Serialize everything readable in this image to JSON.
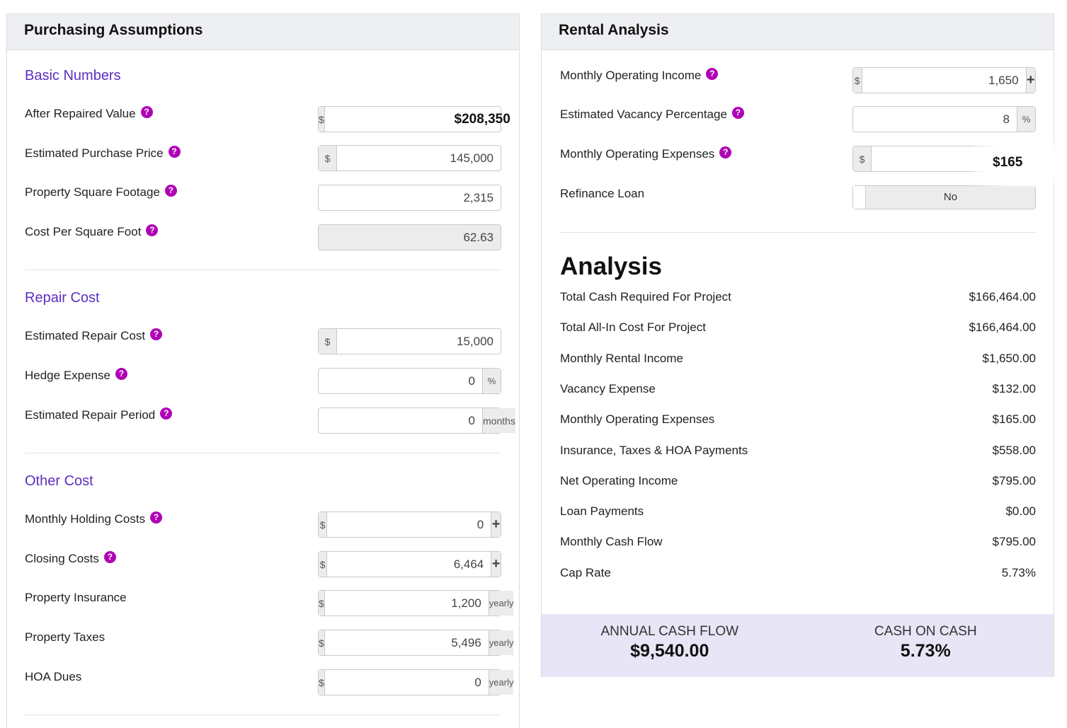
{
  "purchasing": {
    "header": "Purchasing Assumptions",
    "basic": {
      "title": "Basic Numbers",
      "after_repaired_value": {
        "label": "After Repaired Value",
        "prefix": "$",
        "value": "$208,350"
      },
      "purchase_price": {
        "label": "Estimated Purchase Price",
        "prefix": "$",
        "value": "145,000"
      },
      "square_footage": {
        "label": "Property Square Footage",
        "value": "2,315"
      },
      "cost_per_sqft": {
        "label": "Cost Per Square Foot",
        "value": "62.63"
      }
    },
    "repair": {
      "title": "Repair Cost",
      "repair_cost": {
        "label": "Estimated Repair Cost",
        "prefix": "$",
        "value": "15,000"
      },
      "hedge_expense": {
        "label": "Hedge Expense",
        "suffix": "%",
        "value": "0"
      },
      "repair_period": {
        "label": "Estimated Repair Period",
        "suffix": "months",
        "value": "0"
      }
    },
    "other": {
      "title": "Other Cost",
      "holding_costs": {
        "label": "Monthly Holding Costs",
        "prefix": "$",
        "value": "0"
      },
      "closing_costs": {
        "label": "Closing Costs",
        "prefix": "$",
        "value": "6,464"
      },
      "insurance": {
        "label": "Property Insurance",
        "prefix": "$",
        "value": "1,200",
        "suffix": "yearly"
      },
      "taxes": {
        "label": "Property Taxes",
        "prefix": "$",
        "value": "5,496",
        "suffix": "yearly"
      },
      "hoa": {
        "label": "HOA Dues",
        "prefix": "$",
        "value": "0",
        "suffix": "yearly"
      }
    }
  },
  "rental": {
    "header": "Rental Analysis",
    "operating_income": {
      "label": "Monthly Operating Income",
      "prefix": "$",
      "value": "1,650"
    },
    "vacancy": {
      "label": "Estimated Vacancy Percentage",
      "value": "8",
      "suffix": "%"
    },
    "operating_expenses": {
      "label": "Monthly Operating Expenses",
      "prefix": "$",
      "value": ""
    },
    "refinance": {
      "label": "Refinance Loan",
      "value": "No"
    },
    "tooltip_value": "$165",
    "analysis": {
      "title": "Analysis",
      "rows": [
        {
          "label": "Total Cash Required For Project",
          "value": "$166,464.00"
        },
        {
          "label": "Total All-In Cost For Project",
          "value": "$166,464.00"
        },
        {
          "label": "Monthly Rental Income",
          "value": "$1,650.00"
        },
        {
          "label": "Vacancy Expense",
          "value": "$132.00"
        },
        {
          "label": "Monthly Operating Expenses",
          "value": "$165.00"
        },
        {
          "label": "Insurance, Taxes & HOA Payments",
          "value": "$558.00"
        },
        {
          "label": "Net Operating Income",
          "value": "$795.00"
        },
        {
          "label": "Loan Payments",
          "value": "$0.00"
        },
        {
          "label": "Monthly Cash Flow",
          "value": "$795.00"
        },
        {
          "label": "Cap Rate",
          "value": "5.73%"
        }
      ]
    },
    "summary": {
      "annual_cash_flow_label": "ANNUAL CASH FLOW",
      "annual_cash_flow_value": "$9,540.00",
      "cash_on_cash_label": "CASH ON CASH",
      "cash_on_cash_value": "5.73%"
    }
  },
  "icons": {
    "help": "question-circle-icon",
    "plus": "plus-icon"
  },
  "colors": {
    "section_title": "#5a2fbf",
    "help_icon": "#b000b6",
    "summary_bg": "#e7e5f6"
  }
}
